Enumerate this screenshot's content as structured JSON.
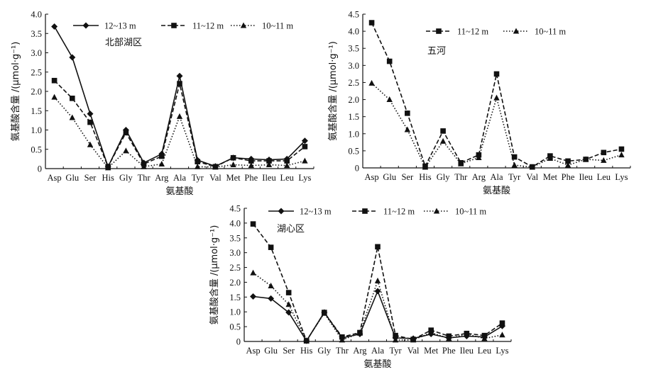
{
  "categories": [
    "Asp",
    "Glu",
    "Ser",
    "His",
    "Gly",
    "Thr",
    "Arg",
    "Ala",
    "Tyr",
    "Val",
    "Met",
    "Phe",
    "Ileu",
    "Leu",
    "Lys"
  ],
  "series_styles": {
    "12~13 m": {
      "dash": "",
      "marker": "diamond"
    },
    "11~12 m": {
      "dash": "6,3",
      "marker": "square"
    },
    "10~11 m": {
      "dash": "1.5,2.5",
      "marker": "triangle"
    }
  },
  "chart_data": [
    {
      "type": "line",
      "title": "北部湖区",
      "xlabel": "氨基酸",
      "ylabel": "氨基酸含量 /(μmol·g⁻¹)",
      "ylim": [
        0,
        4.0
      ],
      "yticks": [
        "0",
        "0.5",
        "1.0",
        "1.5",
        "2.0",
        "2.5",
        "3.0",
        "3.5",
        "4.0"
      ],
      "series": [
        {
          "name": "12~13 m",
          "values": [
            3.68,
            2.88,
            1.42,
            0.05,
            1.0,
            0.15,
            0.38,
            2.4,
            0.22,
            0.06,
            0.28,
            0.25,
            0.23,
            0.25,
            0.72
          ]
        },
        {
          "name": "11~12 m",
          "values": [
            2.28,
            1.82,
            1.2,
            0.05,
            0.93,
            0.12,
            0.32,
            2.2,
            0.18,
            0.05,
            0.28,
            0.2,
            0.2,
            0.2,
            0.57
          ]
        },
        {
          "name": "10~11 m",
          "values": [
            1.85,
            1.32,
            0.62,
            0.02,
            0.46,
            0.05,
            0.12,
            1.35,
            0.05,
            0.04,
            0.1,
            0.08,
            0.1,
            0.08,
            0.2
          ]
        }
      ]
    },
    {
      "type": "line",
      "title": "五河",
      "xlabel": "氨基酸",
      "ylabel": "氨基酸含量 /(μmol·g⁻¹)",
      "ylim": [
        0,
        4.5
      ],
      "yticks": [
        "0",
        "0.5",
        "1.0",
        "1.5",
        "2.0",
        "2.5",
        "3.0",
        "3.5",
        "4.0",
        "4.5"
      ],
      "series": [
        {
          "name": "11~12 m",
          "values": [
            4.25,
            3.12,
            1.6,
            0.05,
            1.08,
            0.15,
            0.38,
            2.75,
            0.32,
            0.03,
            0.35,
            0.2,
            0.25,
            0.45,
            0.55
          ]
        },
        {
          "name": "10~11 m",
          "values": [
            2.48,
            2.0,
            1.12,
            0.02,
            0.78,
            0.12,
            0.3,
            2.05,
            0.08,
            0.02,
            0.28,
            0.08,
            0.25,
            0.22,
            0.38
          ]
        }
      ]
    },
    {
      "type": "line",
      "title": "湖心区",
      "xlabel": "氨基酸",
      "ylabel": "氨基酸含量 /(μmol·g⁻¹)",
      "ylim": [
        0,
        4.5
      ],
      "yticks": [
        "0",
        "0.5",
        "1.0",
        "1.5",
        "2.0",
        "2.5",
        "3.0",
        "3.5",
        "4.0",
        "4.5"
      ],
      "series": [
        {
          "name": "12~13 m",
          "values": [
            1.52,
            1.45,
            0.98,
            0.02,
            0.98,
            0.12,
            0.25,
            1.7,
            0.12,
            0.1,
            0.25,
            0.12,
            0.18,
            0.15,
            0.52
          ]
        },
        {
          "name": "11~12 m",
          "values": [
            3.97,
            3.18,
            1.65,
            0.02,
            0.98,
            0.15,
            0.3,
            3.2,
            0.2,
            0.07,
            0.38,
            0.18,
            0.27,
            0.2,
            0.62
          ]
        },
        {
          "name": "10~11 m",
          "values": [
            2.32,
            1.88,
            1.25,
            0.03,
            0.95,
            0.05,
            0.28,
            2.05,
            0.05,
            0.05,
            0.3,
            0.1,
            0.25,
            0.1,
            0.22
          ]
        }
      ]
    }
  ]
}
